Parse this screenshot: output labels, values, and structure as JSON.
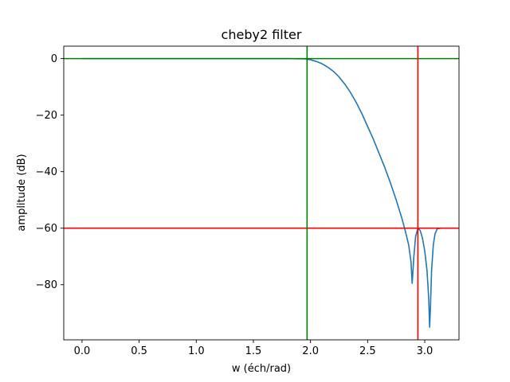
{
  "chart_data": {
    "type": "line",
    "title": "cheby2 filter",
    "xlabel": "w (éch/rad)",
    "ylabel": "amplitude (dB)",
    "xlim": [
      -0.16,
      3.3
    ],
    "ylim": [
      -99.5,
      4.4
    ],
    "grid": false,
    "xticks": [
      {
        "value": 0.0,
        "label": "0.0"
      },
      {
        "value": 0.5,
        "label": "0.5"
      },
      {
        "value": 1.0,
        "label": "1.0"
      },
      {
        "value": 1.5,
        "label": "1.5"
      },
      {
        "value": 2.0,
        "label": "2.0"
      },
      {
        "value": 2.5,
        "label": "2.5"
      },
      {
        "value": 3.0,
        "label": "3.0"
      }
    ],
    "yticks": [
      {
        "value": 0,
        "label": "0"
      },
      {
        "value": -20,
        "label": "−20"
      },
      {
        "value": -40,
        "label": "−40"
      },
      {
        "value": -60,
        "label": "−60"
      },
      {
        "value": -80,
        "label": "−80"
      }
    ],
    "series": [
      {
        "color": "#1f77b4",
        "x": [
          0.0,
          0.5,
          1.0,
          1.5,
          1.8,
          1.95,
          2.0,
          2.05,
          2.1,
          2.15,
          2.2,
          2.25,
          2.3,
          2.35,
          2.4,
          2.45,
          2.5,
          2.55,
          2.6,
          2.65,
          2.7,
          2.75,
          2.8,
          2.83,
          2.86,
          2.88,
          2.89,
          2.905,
          2.92,
          2.94,
          2.96,
          2.98,
          3.0,
          3.02,
          3.035,
          3.043,
          3.05,
          3.06,
          3.075,
          3.09,
          3.11,
          3.14
        ],
        "y": [
          0.0,
          0.0,
          0.0,
          0.0,
          0.0,
          -0.1,
          -0.4,
          -1.0,
          -1.8,
          -3.0,
          -4.5,
          -6.5,
          -9.0,
          -12.0,
          -15.5,
          -19.5,
          -24.0,
          -28.5,
          -33.5,
          -38.5,
          -44.0,
          -50.0,
          -56.5,
          -61.0,
          -66.0,
          -72.0,
          -79.5,
          -70.0,
          -63.0,
          -60.0,
          -60.8,
          -63.5,
          -68.0,
          -75.0,
          -85.0,
          -95.0,
          -88.0,
          -75.0,
          -66.0,
          -62.0,
          -60.2,
          -60.0
        ]
      }
    ],
    "reference_lines": {
      "horizontal": [
        {
          "value": 0,
          "color": "#008000"
        },
        {
          "value": -60,
          "color": "#ff0000"
        }
      ],
      "vertical": [
        {
          "value": 1.97,
          "color": "#008000"
        },
        {
          "value": 2.94,
          "color": "#ff0000"
        }
      ]
    }
  }
}
